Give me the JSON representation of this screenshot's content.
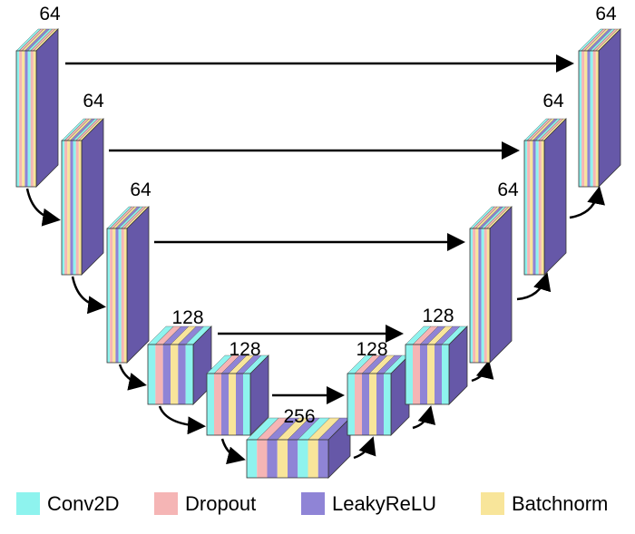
{
  "blocks": [
    {
      "label": "64"
    },
    {
      "label": "64"
    },
    {
      "label": "64"
    },
    {
      "label": "128"
    },
    {
      "label": "128"
    },
    {
      "label": "256"
    },
    {
      "label": "128"
    },
    {
      "label": "128"
    },
    {
      "label": "64"
    },
    {
      "label": "64"
    },
    {
      "label": "64"
    }
  ],
  "legend": [
    {
      "label": "Conv2D",
      "color": "#8ef3ee"
    },
    {
      "label": "Dropout",
      "color": "#f5b5b5"
    },
    {
      "label": "LeakyReLU",
      "color": "#8f84d6"
    },
    {
      "label": "Batchnorm",
      "color": "#f8e59a"
    }
  ]
}
